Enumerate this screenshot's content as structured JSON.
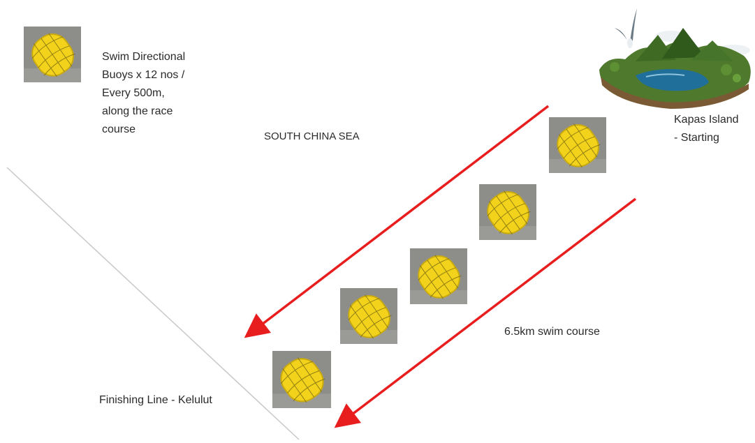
{
  "labels": {
    "legend_line1": "Swim Directional",
    "legend_line2": "Buoys x 12 nos /",
    "legend_line3": "Every 500m,",
    "legend_line4": "along the race",
    "legend_line5": "course",
    "sea": "SOUTH CHINA SEA",
    "start_line1": "Kapas Island",
    "start_line2": "- Starting",
    "course": "6.5km swim course",
    "finish": "Finishing Line - Kelulut"
  },
  "colors": {
    "arrow": "#e81d1d",
    "buoy_fill": "#f2d21b",
    "buoy_bg": "#8d8d8a",
    "shoreline": "#c8c8c8"
  },
  "icons": {
    "buoy": "yellow-buoy-icon",
    "island": "island-illustration"
  }
}
